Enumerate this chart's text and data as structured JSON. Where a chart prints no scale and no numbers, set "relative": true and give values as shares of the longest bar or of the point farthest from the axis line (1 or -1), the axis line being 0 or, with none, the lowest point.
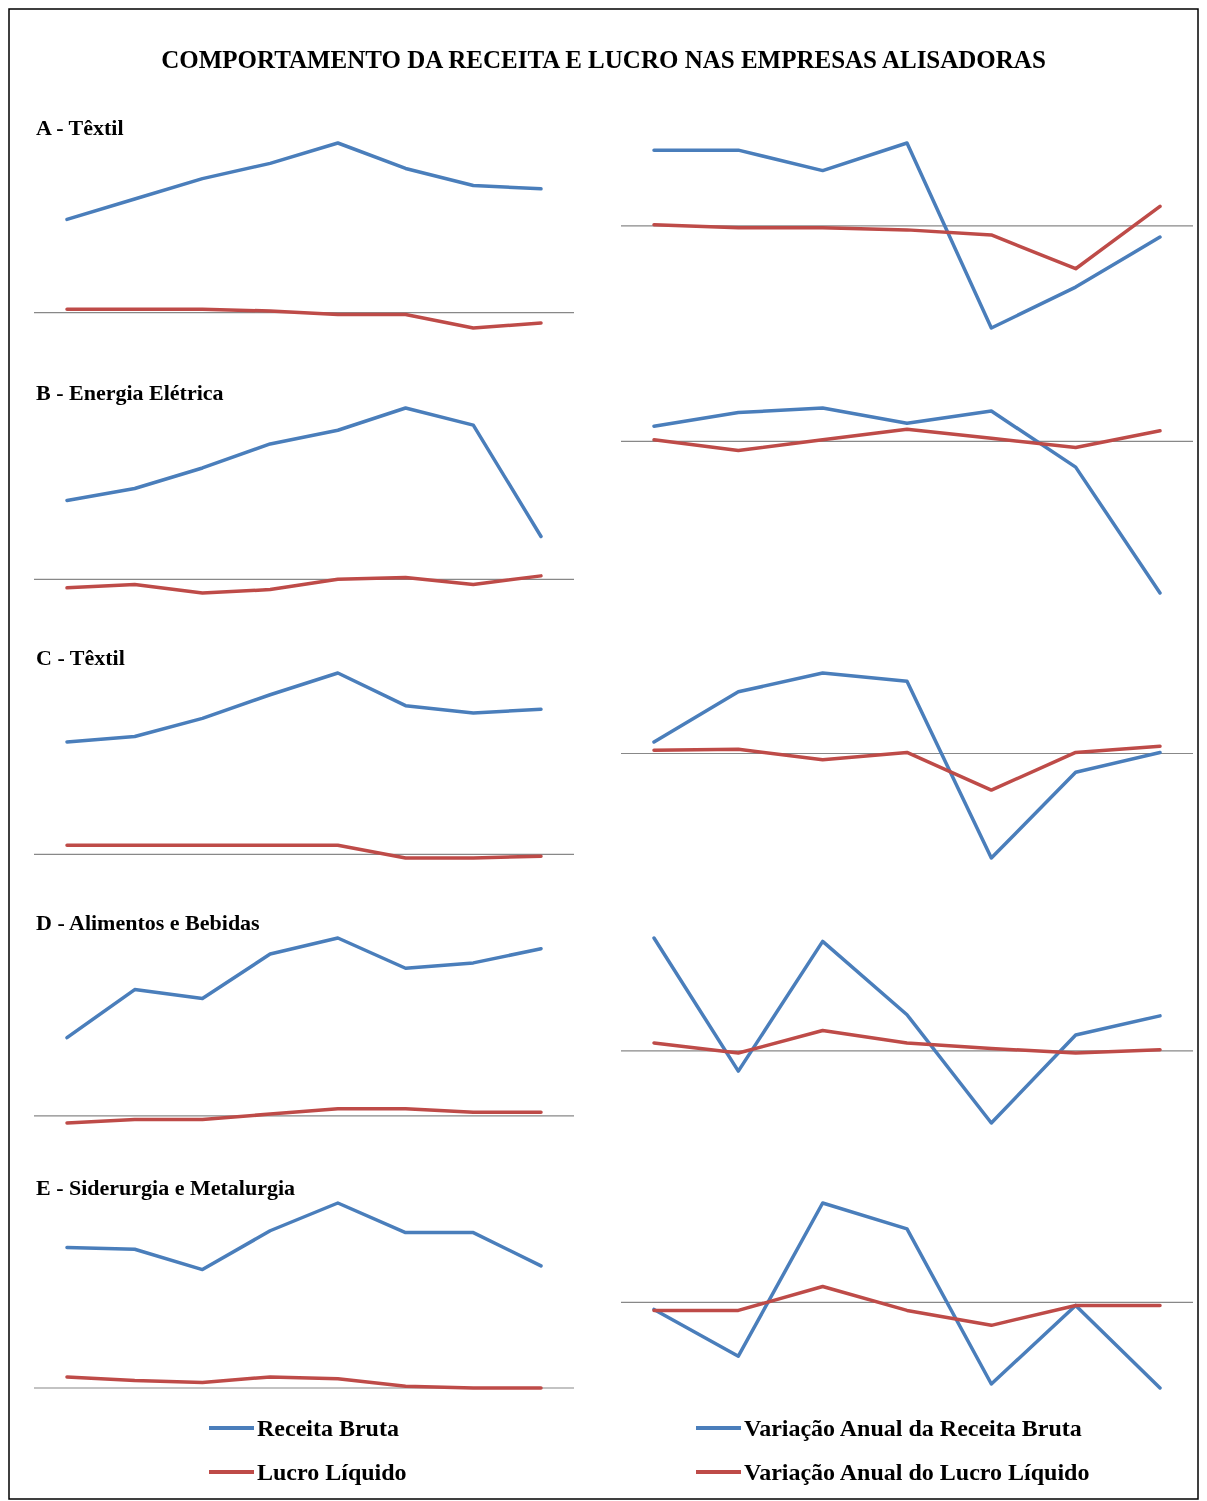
{
  "chart_data": [
    {
      "type": "line",
      "title": "COMPORTAMENTO  DA RECEITA  E LUCRO  NAS EMPRESAS  ALISADORAS",
      "subtitle": "A - Têxtil",
      "relative": true,
      "categories": [
        null,
        null,
        null,
        null,
        null,
        null,
        null,
        null
      ],
      "series": [
        {
          "color": "#4a7ebb",
          "values": [
            0.55,
            0.67,
            0.79,
            0.88,
            1,
            0.85,
            0.75,
            0.73
          ]
        },
        {
          "color": "#be4b48",
          "values": [
            0.02,
            0.02,
            0.02,
            0.01,
            -0.01,
            -0.01,
            -0.09,
            -0.06
          ]
        }
      ]
    },
    {
      "type": "line",
      "relative": true,
      "categories": [
        null,
        null,
        null,
        null,
        null,
        null,
        null
      ],
      "series": [
        {
          "color": "#4a7ebb",
          "values": [
            0.74,
            0.74,
            0.54,
            0.81,
            -1,
            -0.6,
            -0.11
          ]
        },
        {
          "color": "#be4b48",
          "values": [
            0.01,
            -0.02,
            -0.02,
            -0.04,
            -0.09,
            -0.42,
            0.19
          ]
        }
      ]
    },
    {
      "type": "line",
      "subtitle": "B - Energia Elétrica",
      "relative": true,
      "categories": [
        null,
        null,
        null,
        null,
        null,
        null,
        null,
        null
      ],
      "series": [
        {
          "color": "#4a7ebb",
          "values": [
            0.46,
            0.53,
            0.65,
            0.79,
            0.87,
            1,
            0.9,
            0.25
          ]
        },
        {
          "color": "#be4b48",
          "values": [
            -0.05,
            -0.03,
            -0.08,
            -0.06,
            0,
            0.01,
            -0.03,
            0.02
          ]
        }
      ]
    },
    {
      "type": "line",
      "relative": true,
      "categories": [
        null,
        null,
        null,
        null,
        null,
        null,
        null
      ],
      "series": [
        {
          "color": "#4a7ebb",
          "values": [
            0.1,
            0.19,
            0.22,
            0.12,
            0.2,
            -0.17,
            -1
          ]
        },
        {
          "color": "#be4b48",
          "values": [
            0.01,
            -0.06,
            0.01,
            0.08,
            0.02,
            -0.04,
            0.07
          ]
        }
      ]
    },
    {
      "type": "line",
      "subtitle": "C - Têxtil",
      "relative": true,
      "categories": [
        null,
        null,
        null,
        null,
        null,
        null,
        null,
        null
      ],
      "series": [
        {
          "color": "#4a7ebb",
          "values": [
            0.62,
            0.65,
            0.75,
            0.88,
            1,
            0.82,
            0.78,
            0.8
          ]
        },
        {
          "color": "#be4b48",
          "values": [
            0.05,
            0.05,
            0.05,
            0.05,
            0.05,
            -0.02,
            -0.02,
            -0.01
          ]
        }
      ]
    },
    {
      "type": "line",
      "relative": true,
      "categories": [
        null,
        null,
        null,
        null,
        null,
        null,
        null
      ],
      "series": [
        {
          "color": "#4a7ebb",
          "values": [
            0.11,
            0.59,
            0.77,
            0.69,
            -1,
            -0.18,
            0.01
          ]
        },
        {
          "color": "#be4b48",
          "values": [
            0.03,
            0.04,
            -0.06,
            0.01,
            -0.35,
            0.01,
            0.07
          ]
        }
      ]
    },
    {
      "type": "line",
      "subtitle": "D - Alimentos e Bebidas",
      "relative": true,
      "categories": [
        null,
        null,
        null,
        null,
        null,
        null,
        null,
        null
      ],
      "series": [
        {
          "color": "#4a7ebb",
          "values": [
            0.44,
            0.71,
            0.66,
            0.91,
            1,
            0.83,
            0.86,
            0.94
          ]
        },
        {
          "color": "#be4b48",
          "values": [
            -0.04,
            -0.02,
            -0.02,
            0.01,
            0.04,
            0.04,
            0.02,
            0.02
          ]
        }
      ]
    },
    {
      "type": "line",
      "relative": true,
      "categories": [
        null,
        null,
        null,
        null,
        null,
        null,
        null
      ],
      "series": [
        {
          "color": "#4a7ebb",
          "values": [
            1,
            -0.18,
            0.97,
            0.32,
            -0.64,
            0.14,
            0.31
          ]
        },
        {
          "color": "#be4b48",
          "values": [
            0.07,
            -0.02,
            0.18,
            0.07,
            0.02,
            -0.02,
            0.01
          ]
        }
      ]
    },
    {
      "type": "line",
      "subtitle": "E - Siderurgia e Metalurgia",
      "relative": true,
      "legend": "bottom",
      "categories": [
        null,
        null,
        null,
        null,
        null,
        null,
        null,
        null
      ],
      "series": [
        {
          "name": "Receita Bruta",
          "color": "#4a7ebb",
          "values": [
            0.76,
            0.75,
            0.64,
            0.85,
            1,
            0.84,
            0.84,
            0.66
          ]
        },
        {
          "name": "Lucro Líquido",
          "color": "#be4b48",
          "values": [
            0.06,
            0.04,
            0.03,
            0.06,
            0.05,
            0.01,
            0,
            0
          ]
        }
      ]
    },
    {
      "type": "line",
      "relative": true,
      "legend": "bottom",
      "categories": [
        null,
        null,
        null,
        null,
        null,
        null,
        null
      ],
      "series": [
        {
          "name": "Variação Anual da Receita Bruta",
          "color": "#4a7ebb",
          "values": [
            -0.07,
            -0.54,
            1,
            0.74,
            -0.82,
            -0.03,
            -0.86
          ]
        },
        {
          "name": "Variação Anual do Lucro Líquido",
          "color": "#be4b48",
          "values": [
            -0.08,
            -0.08,
            0.16,
            -0.08,
            -0.23,
            -0.03,
            -0.03
          ]
        }
      ]
    }
  ]
}
